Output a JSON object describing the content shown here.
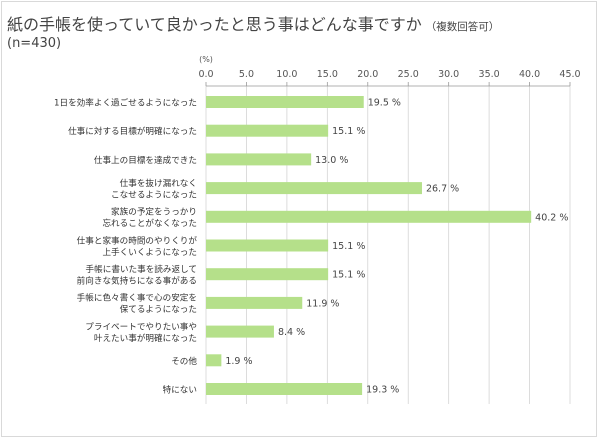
{
  "title": "紙の手帳を使っていて良かったと思う事はどんな事ですか",
  "title_note": "（複数回答可）",
  "sample_size": "(n=430)",
  "chart_data": {
    "type": "bar",
    "orientation": "horizontal",
    "unit_label": "(%)",
    "xlim": [
      0,
      45
    ],
    "ticks": [
      "0.0",
      "5.0",
      "10.0",
      "15.0",
      "20.0",
      "25.0",
      "30.0",
      "35.0",
      "40.0",
      "45.0"
    ],
    "grid": true,
    "bar_color": "#b5e08a",
    "categories": [
      [
        "1日を効率よく過ごせるようになった"
      ],
      [
        "仕事に対する目標が明確になった"
      ],
      [
        "仕事上の目標を達成できた"
      ],
      [
        "仕事を抜け漏れなく",
        "こなせるようになった"
      ],
      [
        "家族の予定をうっかり",
        "忘れることがなくなった"
      ],
      [
        "仕事と家事の時間のやりくりが",
        "上手くいくようになった"
      ],
      [
        "手帳に書いた事を読み返して",
        "前向きな気持ちになる事がある"
      ],
      [
        "手帳に色々書く事で心の安定を",
        "保てるようになった"
      ],
      [
        "プライベートでやりたい事や",
        "叶えたい事が明確になった"
      ],
      [
        "その他"
      ],
      [
        "特にない"
      ]
    ],
    "values": [
      19.5,
      15.1,
      13.0,
      26.7,
      40.2,
      15.1,
      15.1,
      11.9,
      8.4,
      1.9,
      19.3
    ],
    "value_labels": [
      "19.5 %",
      "15.1 %",
      "13.0 %",
      "26.7 %",
      "40.2 %",
      "15.1 %",
      "15.1 %",
      "11.9 %",
      "8.4 %",
      "1.9 %",
      "19.3 %"
    ]
  }
}
